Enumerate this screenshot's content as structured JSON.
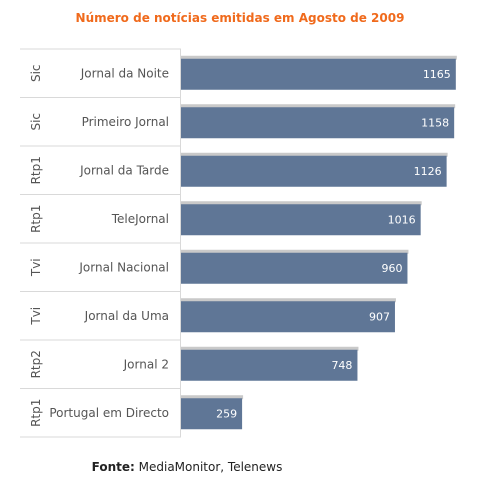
{
  "title": "Número de notícias emitidas em Agosto de 2009",
  "source": {
    "label": "Fonte:",
    "text": "MediaMonitor, Telenews"
  },
  "colors": {
    "bar": "#5f7696",
    "bar_shadow": "#c9c9c9",
    "title": "#f06a1c",
    "grid": "#d9d9d9",
    "label": "#555555",
    "value": "#ffffff"
  },
  "chart_data": {
    "type": "bar",
    "orientation": "horizontal",
    "title": "Número de notícias emitidas em Agosto de 2009",
    "groups": [
      "Sic",
      "Sic",
      "Rtp1",
      "Rtp1",
      "Tvi",
      "Tvi",
      "Rtp2",
      "Rtp1"
    ],
    "categories": [
      "Jornal da Noite",
      "Primeiro Jornal",
      "Jornal da Tarde",
      "TeleJornal",
      "Jornal Nacional",
      "Jornal da Uma",
      "Jornal 2",
      "Portugal em Directo"
    ],
    "values": [
      1165,
      1158,
      1126,
      1016,
      960,
      907,
      748,
      259
    ],
    "xlim": [
      0,
      1170
    ],
    "data_labels": true,
    "grid": false,
    "legend": "none"
  }
}
